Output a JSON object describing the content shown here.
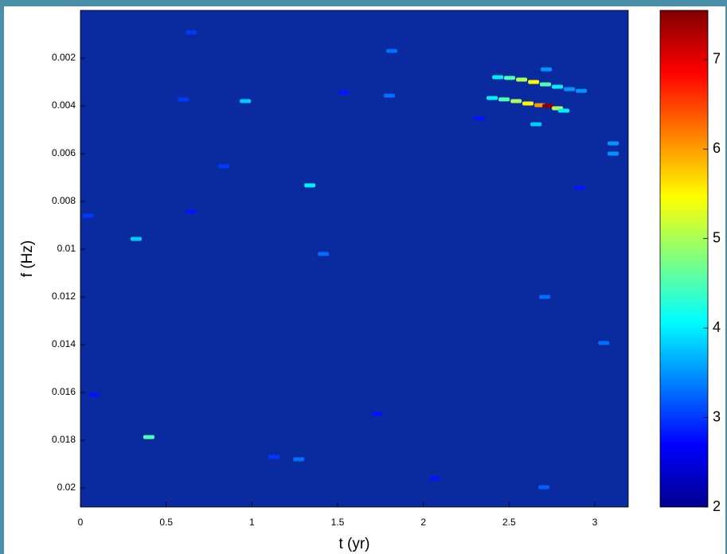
{
  "chart_data": {
    "type": "heatmap",
    "x_label": "t (yr)",
    "y_label": "f (Hz)",
    "colormap": "jet",
    "x": [
      2.434,
      2.503,
      2.573,
      2.643,
      2.712,
      2.782,
      2.852,
      2.921,
      2.401,
      2.471,
      2.541,
      2.61,
      2.68,
      2.726,
      2.782,
      2.819,
      2.657,
      2.717,
      3.107,
      3.107,
      1.338,
      0.962,
      0.399,
      0.325,
      1.417,
      2.708,
      3.052,
      2.703,
      1.816,
      0.646,
      0.046,
      1.802,
      0.6,
      1.273,
      1.129,
      0.079,
      0.836,
      1.537,
      2.327,
      2.912,
      0.646,
      2.067,
      1.732
    ],
    "y": [
      0.0028,
      0.00283,
      0.0029,
      0.003,
      0.0031,
      0.0032,
      0.0033,
      0.00337,
      0.00367,
      0.00373,
      0.0038,
      0.0039,
      0.00397,
      0.004,
      0.0041,
      0.0042,
      0.00477,
      0.00247,
      0.00557,
      0.006,
      0.00733,
      0.0038,
      0.01787,
      0.00957,
      0.0102,
      0.012,
      0.01393,
      0.01997,
      0.0017,
      0.00093,
      0.0086,
      0.00357,
      0.00373,
      0.0188,
      0.0187,
      0.0161,
      0.00653,
      0.00343,
      0.00453,
      0.00743,
      0.00843,
      0.0196,
      0.0169
    ],
    "values": [
      4,
      4.5,
      5,
      5.5,
      4.5,
      4,
      3.5,
      3.5,
      4,
      4.5,
      5,
      5.5,
      6,
      7.5,
      5,
      4,
      3.8,
      3.5,
      3.5,
      3.5,
      4,
      3.8,
      4.5,
      3.8,
      3.3,
      3.3,
      3.3,
      3.2,
      3.3,
      3,
      3,
      3.3,
      3,
      3.3,
      3,
      2.8,
      3,
      2.8,
      2.8,
      2.8,
      2.8,
      2.8,
      2.8
    ],
    "xlim": [
      0,
      3.195
    ],
    "xticks": [
      0,
      0.5,
      1,
      1.5,
      2,
      2.5,
      3
    ],
    "ylim": [
      0,
      0.0208
    ],
    "y_inverted": true,
    "yticks": [
      0.002,
      0.004,
      0.006,
      0.008,
      0.01,
      0.012,
      0.014,
      0.016,
      0.018,
      0.02
    ],
    "clim": [
      2,
      7.55
    ],
    "cticks": [
      2,
      3,
      4,
      5,
      6,
      7
    ]
  }
}
